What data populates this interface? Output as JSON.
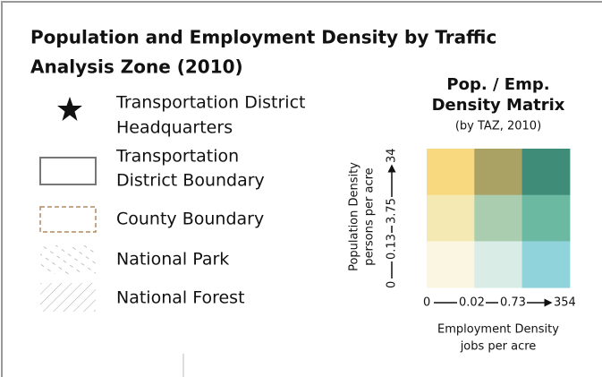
{
  "title": [
    "Population and Employment Density by Traffic",
    "Analysis Zone (2010)"
  ],
  "legend": [
    {
      "symbol": "star",
      "label": [
        "Transportation District",
        "Headquarters"
      ]
    },
    {
      "symbol": "district-boundary",
      "label": [
        "Transportation",
        "District Boundary"
      ]
    },
    {
      "symbol": "county-boundary",
      "label": [
        "County Boundary"
      ]
    },
    {
      "symbol": "national-park",
      "label": [
        "National Park"
      ]
    },
    {
      "symbol": "national-forest",
      "label": [
        "National Forest"
      ]
    }
  ],
  "matrix": {
    "title": [
      "Pop. / Emp.",
      "Density Matrix"
    ],
    "subtitle": "(by TAZ, 2010)",
    "y_label": [
      "Population Density",
      "persons per acre"
    ],
    "y_ticks": [
      0,
      0.13,
      3.75,
      34
    ],
    "x_label": [
      "Employment Density",
      "jobs per acre"
    ],
    "x_ticks": [
      0,
      0.02,
      0.73,
      354
    ],
    "colors": [
      [
        "#f9d980",
        "#aaa265",
        "#3f8c78"
      ],
      [
        "#f4e9b2",
        "#abcdaf",
        "#6cb9a2"
      ],
      [
        "#faf6e2",
        "#d9ece5",
        "#90d3da"
      ]
    ]
  }
}
